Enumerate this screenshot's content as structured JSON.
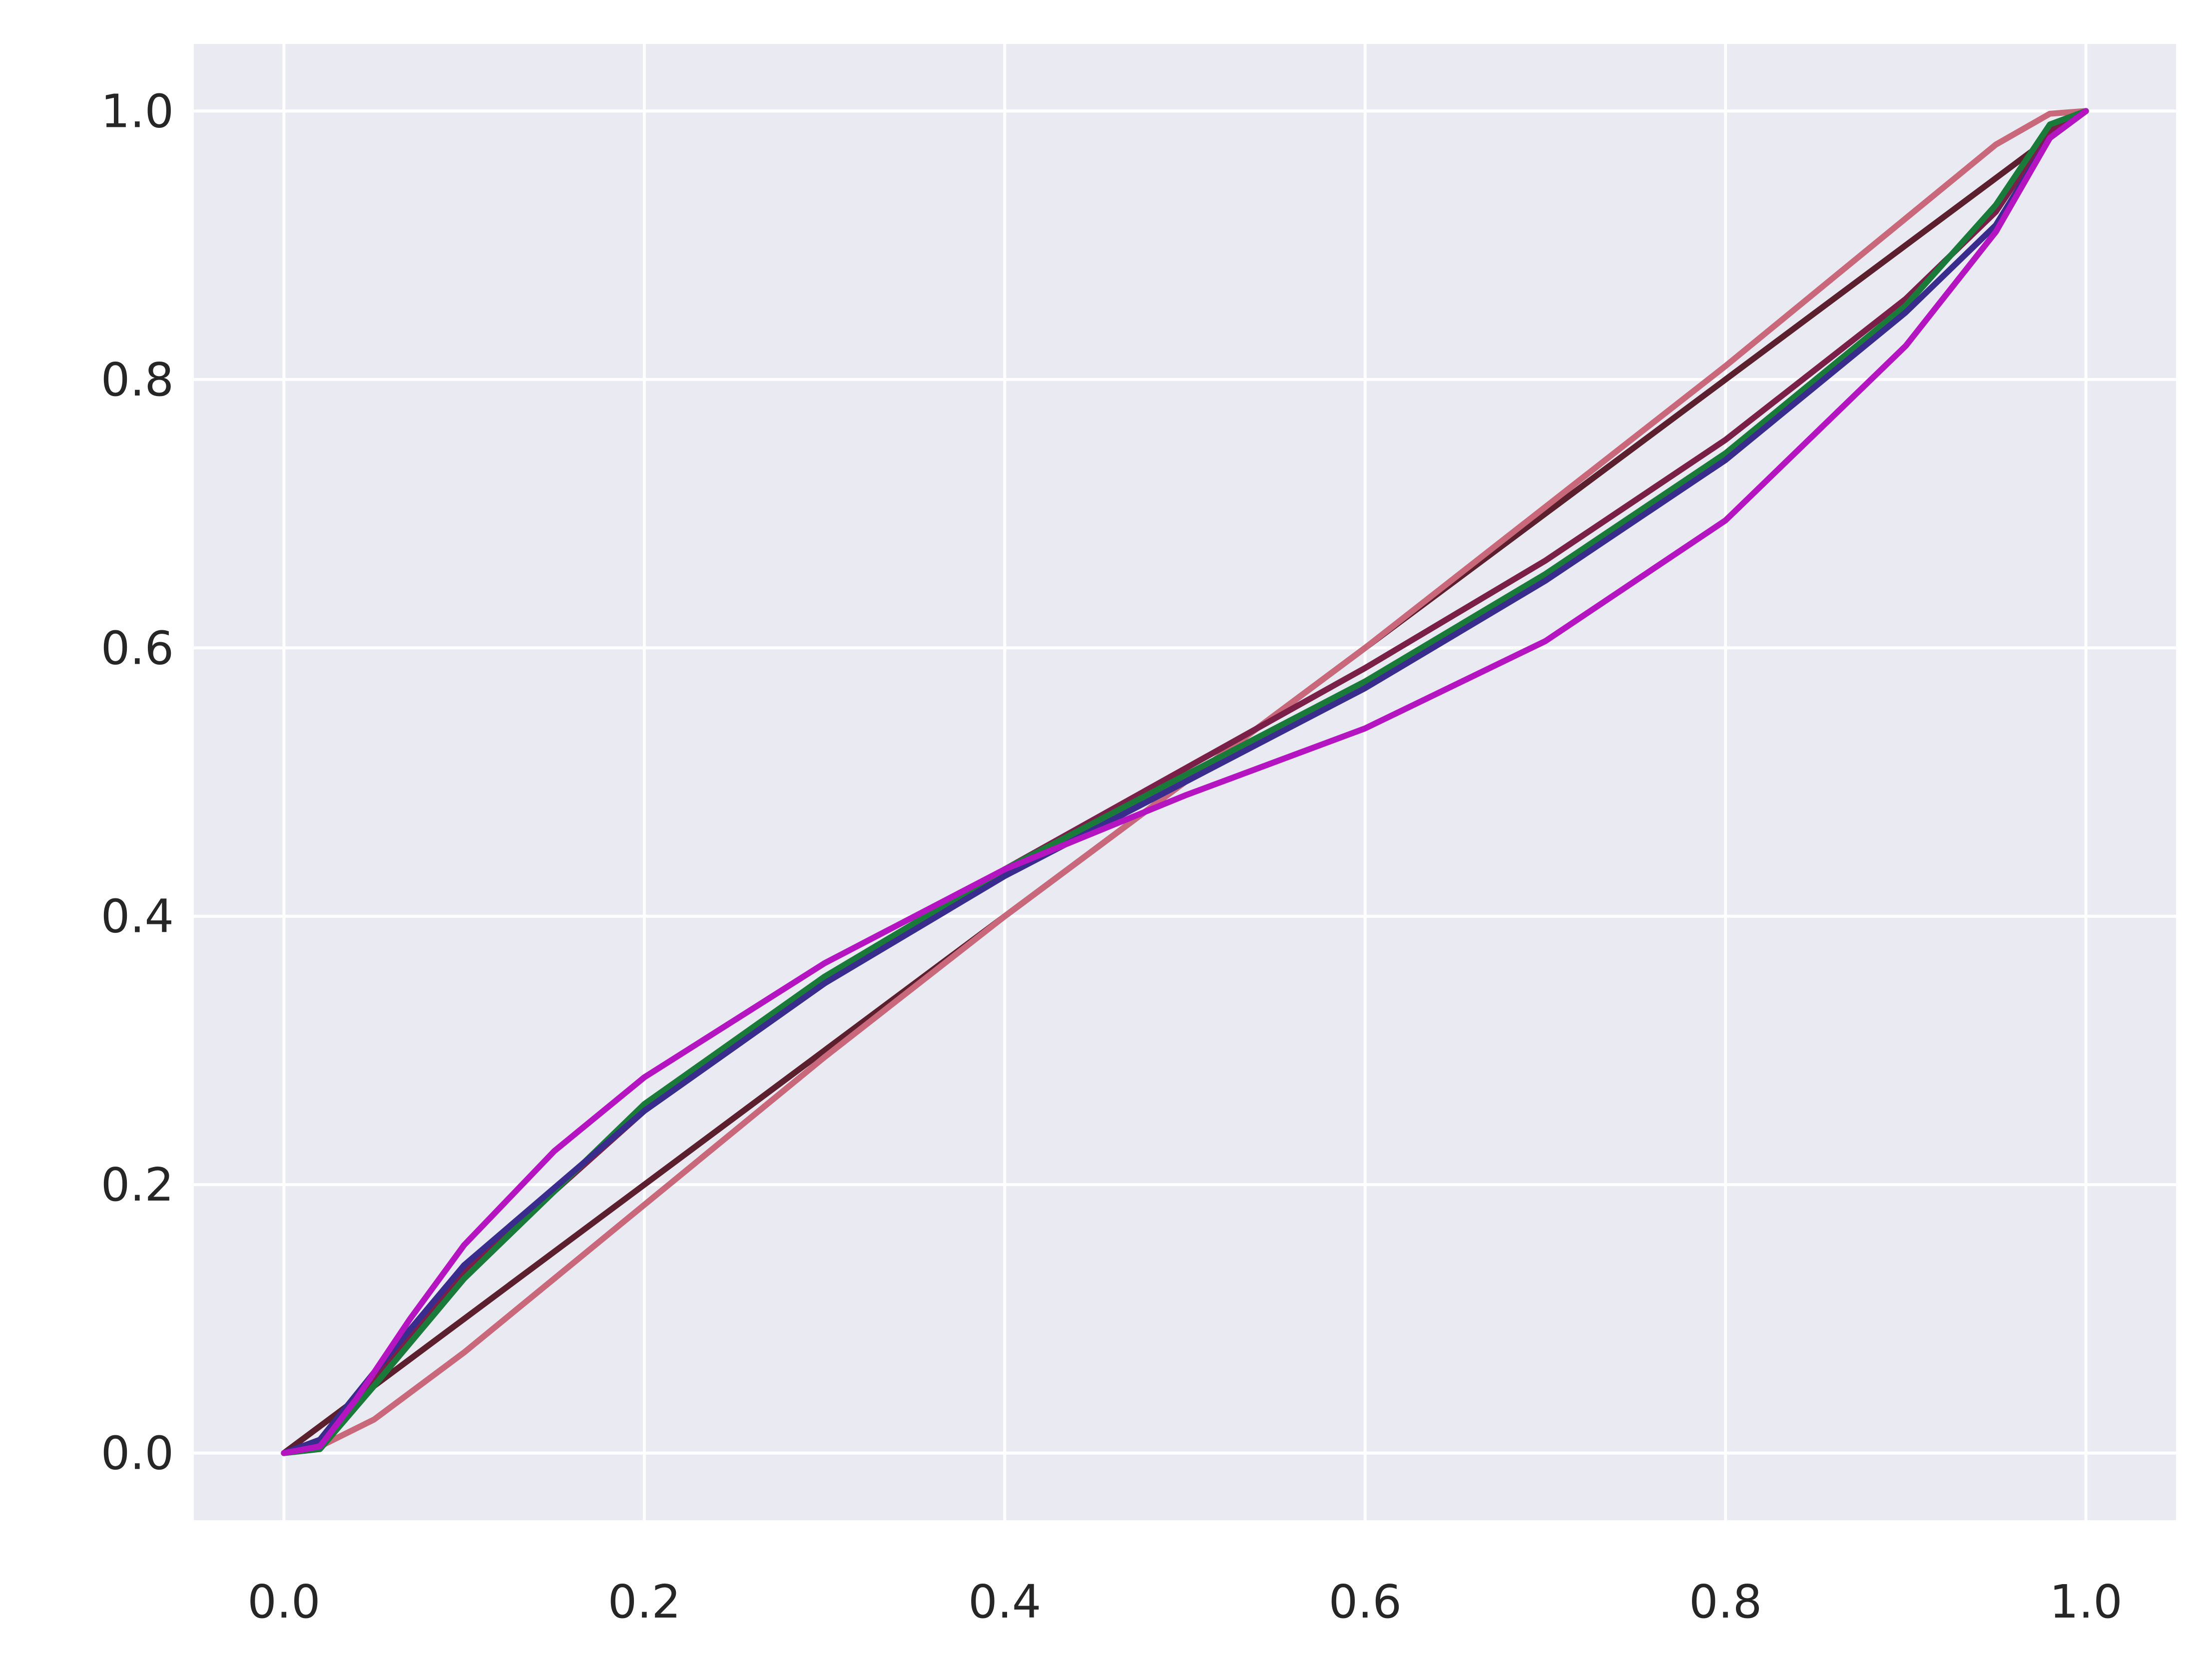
{
  "chart_data": {
    "type": "line",
    "title": "",
    "xlabel": "",
    "ylabel": "",
    "xlim": [
      -0.05,
      1.05
    ],
    "ylim": [
      -0.05,
      1.05
    ],
    "grid": true,
    "background": "#EAEAF2",
    "grid_color": "#FFFFFF",
    "x_ticks": [
      0.0,
      0.2,
      0.4,
      0.6,
      0.8,
      1.0
    ],
    "y_ticks": [
      0.0,
      0.2,
      0.4,
      0.6,
      0.8,
      1.0
    ],
    "x_tick_labels": [
      "0.0",
      "0.2",
      "0.4",
      "0.6",
      "0.8",
      "1.0"
    ],
    "y_tick_labels": [
      "0.0",
      "0.2",
      "0.4",
      "0.6",
      "0.8",
      "1.0"
    ],
    "series": [
      {
        "color": "#5C1F2E",
        "x": [
          0.0,
          0.1,
          0.2,
          0.3,
          0.4,
          0.5,
          0.6,
          0.7,
          0.8,
          0.9,
          1.0
        ],
        "y": [
          0.0,
          0.1,
          0.2,
          0.3,
          0.4,
          0.5,
          0.6,
          0.7,
          0.8,
          0.9,
          1.0
        ]
      },
      {
        "color": "#C8687A",
        "x": [
          0.0,
          0.02,
          0.05,
          0.1,
          0.15,
          0.2,
          0.3,
          0.4,
          0.5,
          0.6,
          0.7,
          0.8,
          0.85,
          0.9,
          0.95,
          0.98,
          1.0
        ],
        "y": [
          0.0,
          0.005,
          0.025,
          0.075,
          0.13,
          0.185,
          0.295,
          0.4,
          0.5,
          0.6,
          0.705,
          0.81,
          0.865,
          0.92,
          0.975,
          0.998,
          1.0
        ]
      },
      {
        "color": "#7A2048",
        "x": [
          0.0,
          0.02,
          0.05,
          0.1,
          0.2,
          0.3,
          0.4,
          0.5,
          0.6,
          0.7,
          0.8,
          0.9,
          0.95,
          0.98,
          1.0
        ],
        "y": [
          0.0,
          0.005,
          0.055,
          0.135,
          0.255,
          0.35,
          0.435,
          0.51,
          0.585,
          0.665,
          0.755,
          0.86,
          0.925,
          0.985,
          1.0
        ]
      },
      {
        "color": "#1A7A3A",
        "x": [
          0.0,
          0.02,
          0.05,
          0.1,
          0.2,
          0.3,
          0.4,
          0.5,
          0.6,
          0.7,
          0.8,
          0.9,
          0.95,
          0.98,
          1.0
        ],
        "y": [
          0.0,
          0.003,
          0.05,
          0.13,
          0.26,
          0.355,
          0.435,
          0.505,
          0.575,
          0.655,
          0.745,
          0.855,
          0.93,
          0.99,
          1.0
        ]
      },
      {
        "color": "#3A2C8C",
        "x": [
          0.0,
          0.02,
          0.05,
          0.1,
          0.2,
          0.3,
          0.4,
          0.5,
          0.6,
          0.7,
          0.8,
          0.9,
          0.95,
          0.98,
          1.0
        ],
        "y": [
          0.0,
          0.01,
          0.06,
          0.14,
          0.255,
          0.35,
          0.43,
          0.5,
          0.57,
          0.65,
          0.74,
          0.85,
          0.915,
          0.98,
          1.0
        ]
      },
      {
        "color": "#B515C0",
        "x": [
          0.0,
          0.02,
          0.04,
          0.07,
          0.1,
          0.15,
          0.2,
          0.3,
          0.4,
          0.5,
          0.6,
          0.7,
          0.8,
          0.9,
          0.95,
          0.98,
          1.0
        ],
        "y": [
          0.0,
          0.005,
          0.04,
          0.1,
          0.155,
          0.225,
          0.28,
          0.365,
          0.435,
          0.49,
          0.54,
          0.605,
          0.695,
          0.825,
          0.91,
          0.98,
          1.0
        ]
      }
    ]
  }
}
